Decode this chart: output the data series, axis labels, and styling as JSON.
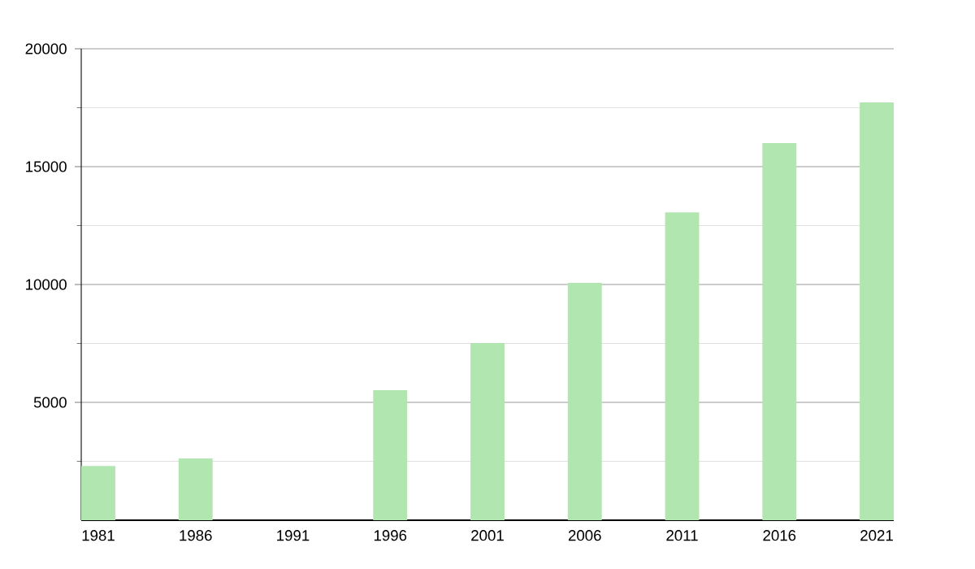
{
  "chart_data": {
    "type": "bar",
    "categories": [
      "1981",
      "1986",
      "1991",
      "1996",
      "2001",
      "2006",
      "2011",
      "2016",
      "2021"
    ],
    "values": [
      2300,
      2620,
      null,
      5520,
      7520,
      10070,
      13060,
      16000,
      17720
    ],
    "color": "#b2e6b0",
    "ylim": [
      0,
      20000
    ],
    "yticks": [
      {
        "value": 2500,
        "label": null
      },
      5000,
      {
        "value": 7500,
        "label": null
      },
      10000,
      {
        "value": 12500,
        "label": null
      },
      15000,
      {
        "value": 17500,
        "label": null
      },
      20000
    ],
    "grid": "y"
  }
}
